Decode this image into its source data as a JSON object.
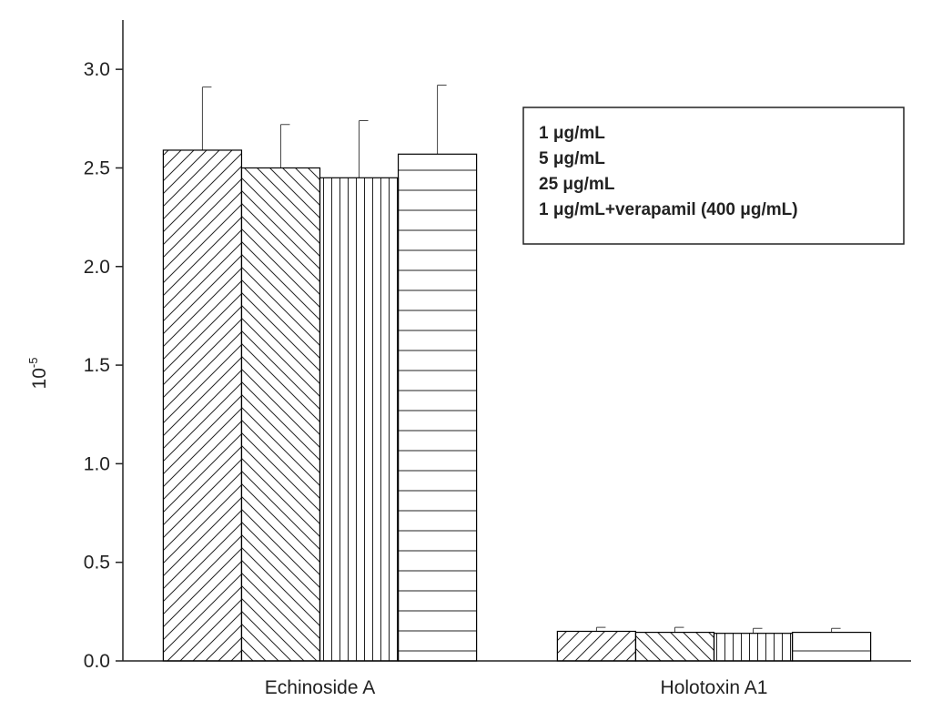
{
  "chart_data": {
    "type": "bar",
    "ylabel": {
      "base": "10",
      "exponent": "-5"
    },
    "categories": [
      "Echinoside A",
      "Holotoxin A1"
    ],
    "series": [
      {
        "name": "1 μg/mL",
        "color": "#000000",
        "hatch": "/",
        "values": [
          2.59,
          0.15
        ],
        "errors": [
          0.32,
          0.02
        ]
      },
      {
        "name": "5 μg/mL",
        "color": "#000000",
        "hatch": "\\",
        "values": [
          2.5,
          0.145
        ],
        "errors": [
          0.22,
          0.025
        ]
      },
      {
        "name": "25 μg/mL",
        "color": "#000000",
        "hatch": "|",
        "values": [
          2.45,
          0.14
        ],
        "errors": [
          0.29,
          0.025
        ]
      },
      {
        "name": "1 μg/mL+verapamil (400 μg/mL)",
        "color": "#000000",
        "hatch": "-",
        "values": [
          2.57,
          0.145
        ],
        "errors": [
          0.35,
          0.02
        ]
      }
    ],
    "ylim": [
      0,
      3.25
    ],
    "yticks": [
      {
        "value": 0,
        "label": "0.0"
      },
      0.5,
      {
        "value": 1,
        "label": "1.0"
      },
      1.5,
      {
        "value": 2,
        "label": "2.0"
      },
      2.5,
      {
        "value": 3,
        "label": "3.0"
      }
    ],
    "legend": "upper right",
    "grid": false
  }
}
